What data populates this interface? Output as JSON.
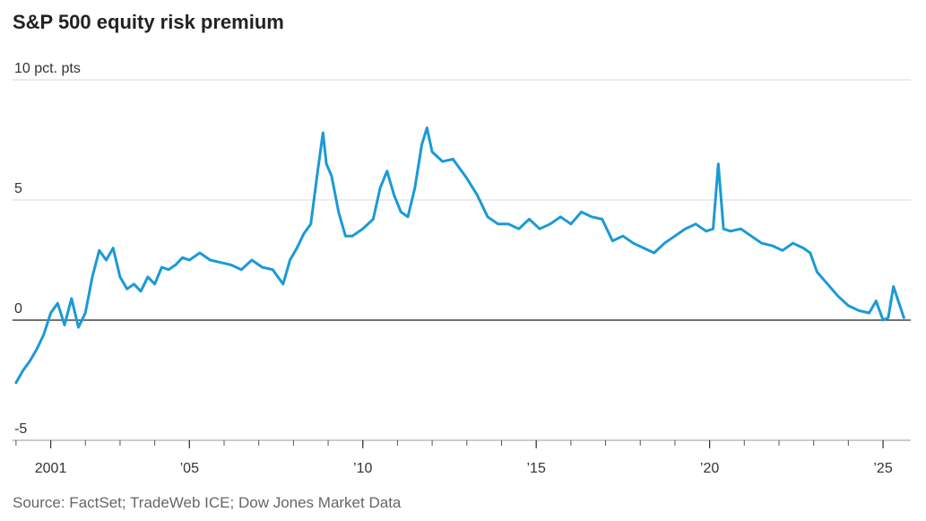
{
  "title": "S&P 500 equity risk premium",
  "source": "Source: FactSet; TradeWeb ICE; Dow Jones Market Data",
  "chart_data": {
    "type": "line",
    "title": "S&P 500 equity risk premium",
    "ylabel": "",
    "unit_label": "10 pct. pts",
    "ylim": [
      -5,
      10
    ],
    "yticks": [
      {
        "value": 10,
        "label": "10 pct. pts"
      },
      {
        "value": 5,
        "label": "5"
      },
      {
        "value": 0,
        "label": "0"
      },
      {
        "value": -5,
        "label": "-5"
      }
    ],
    "xlim": [
      1999.9,
      2025.8
    ],
    "xticks": [
      {
        "value": 2001,
        "label": "2001"
      },
      {
        "value": 2005,
        "label": "’05"
      },
      {
        "value": 2010,
        "label": "’10"
      },
      {
        "value": 2015,
        "label": "’15"
      },
      {
        "value": 2020,
        "label": "’20"
      },
      {
        "value": 2025,
        "label": "’25"
      }
    ],
    "minor_ticks": [
      2000,
      2001,
      2002,
      2003,
      2004,
      2005,
      2006,
      2007,
      2008,
      2009,
      2010,
      2011,
      2012,
      2013,
      2014,
      2015,
      2016,
      2017,
      2018,
      2019,
      2020,
      2021,
      2022,
      2023,
      2024,
      2025
    ],
    "grid": true,
    "line_color": "#1a9ad6",
    "zero_line_color": "#222222",
    "series": [
      {
        "x": [
          2000.0,
          2000.2,
          2000.4,
          2000.6,
          2000.8,
          2001.0,
          2001.2,
          2001.4,
          2001.6,
          2001.8,
          2002.0,
          2002.2,
          2002.4,
          2002.6,
          2002.8,
          2003.0,
          2003.2,
          2003.4,
          2003.6,
          2003.8,
          2004.0,
          2004.2,
          2004.4,
          2004.6,
          2004.8,
          2005.0,
          2005.3,
          2005.6,
          2005.9,
          2006.2,
          2006.5,
          2006.8,
          2007.1,
          2007.4,
          2007.7,
          2007.9,
          2008.1,
          2008.3,
          2008.5,
          2008.7,
          2008.85,
          2008.95,
          2009.1,
          2009.3,
          2009.5,
          2009.7,
          2010.0,
          2010.3,
          2010.5,
          2010.7,
          2010.9,
          2011.1,
          2011.3,
          2011.5,
          2011.7,
          2011.85,
          2012.0,
          2012.3,
          2012.6,
          2013.0,
          2013.3,
          2013.6,
          2013.9,
          2014.2,
          2014.5,
          2014.8,
          2015.1,
          2015.4,
          2015.7,
          2016.0,
          2016.3,
          2016.6,
          2016.9,
          2017.2,
          2017.5,
          2017.8,
          2018.1,
          2018.4,
          2018.7,
          2019.0,
          2019.3,
          2019.6,
          2019.9,
          2020.1,
          2020.25,
          2020.4,
          2020.6,
          2020.9,
          2021.2,
          2021.5,
          2021.8,
          2022.1,
          2022.4,
          2022.7,
          2022.9,
          2023.1,
          2023.4,
          2023.7,
          2024.0,
          2024.3,
          2024.6,
          2024.8,
          2025.0,
          2025.15,
          2025.3,
          2025.6
        ],
        "values": [
          -2.6,
          -2.1,
          -1.7,
          -1.2,
          -0.6,
          0.3,
          0.7,
          -0.2,
          0.9,
          -0.3,
          0.3,
          1.8,
          2.9,
          2.5,
          3.0,
          1.8,
          1.3,
          1.5,
          1.2,
          1.8,
          1.5,
          2.2,
          2.1,
          2.3,
          2.6,
          2.5,
          2.8,
          2.5,
          2.4,
          2.3,
          2.1,
          2.5,
          2.2,
          2.1,
          1.5,
          2.5,
          3.0,
          3.6,
          4.0,
          6.2,
          7.8,
          6.5,
          6.0,
          4.5,
          3.5,
          3.5,
          3.8,
          4.2,
          5.5,
          6.2,
          5.2,
          4.5,
          4.3,
          5.5,
          7.3,
          8.0,
          7.0,
          6.6,
          6.7,
          5.9,
          5.2,
          4.3,
          4.0,
          4.0,
          3.8,
          4.2,
          3.8,
          4.0,
          4.3,
          4.0,
          4.5,
          4.3,
          4.2,
          3.3,
          3.5,
          3.2,
          3.0,
          2.8,
          3.2,
          3.5,
          3.8,
          4.0,
          3.7,
          3.8,
          6.5,
          3.8,
          3.7,
          3.8,
          3.5,
          3.2,
          3.1,
          2.9,
          3.2,
          3.0,
          2.8,
          2.0,
          1.5,
          1.0,
          0.6,
          0.4,
          0.3,
          0.8,
          0.0,
          0.1,
          1.4,
          0.1
        ]
      }
    ]
  }
}
